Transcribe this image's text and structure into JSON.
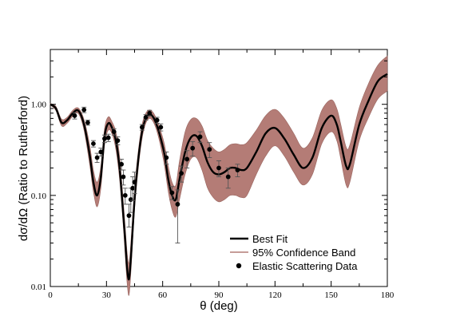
{
  "chart_data": {
    "type": "line",
    "title": "",
    "xlabel": "θ (deg)",
    "ylabel": "dσ/dΩ (Ratio to Rutherford)",
    "xlim": [
      0,
      180
    ],
    "ylim": [
      0.01,
      4.0
    ],
    "y_scale": "log",
    "grid": false,
    "legend_position": "bottom-right",
    "x_ticks": [
      0,
      30,
      60,
      90,
      120,
      150,
      180
    ],
    "x_tick_labels": [
      "0",
      "30",
      "60",
      "90",
      "120",
      "150",
      "180"
    ],
    "y_ticks": [
      0.01,
      0.1,
      1.0
    ],
    "y_tick_labels": [
      "0.01",
      "0.10",
      "1.00"
    ],
    "colors": {
      "best_fit": "#000000",
      "band": "#b47c76",
      "band_edge": "#9a6660",
      "data": "#000000",
      "error_bar": "#555555"
    },
    "series": [
      {
        "name": "Best Fit",
        "kind": "line",
        "x": [
          0,
          3,
          6,
          9,
          12,
          15,
          18,
          21,
          23,
          25,
          27,
          29,
          31,
          33,
          35,
          37,
          39,
          40,
          41,
          42,
          43,
          45,
          47,
          49,
          51,
          53,
          55,
          57,
          59,
          61,
          63,
          65,
          67,
          69,
          72,
          75,
          78,
          81,
          84,
          87,
          90,
          93,
          96,
          99,
          102,
          105,
          110,
          115,
          120,
          125,
          130,
          135,
          140,
          145,
          150,
          153,
          155,
          158,
          160,
          165,
          170,
          175,
          180
        ],
        "y": [
          1.0,
          0.9,
          0.63,
          0.67,
          0.8,
          0.85,
          0.6,
          0.28,
          0.14,
          0.1,
          0.16,
          0.45,
          0.62,
          0.55,
          0.4,
          0.2,
          0.06,
          0.032,
          0.016,
          0.012,
          0.02,
          0.09,
          0.25,
          0.5,
          0.7,
          0.78,
          0.72,
          0.58,
          0.42,
          0.28,
          0.15,
          0.1,
          0.09,
          0.15,
          0.3,
          0.43,
          0.45,
          0.35,
          0.23,
          0.18,
          0.17,
          0.18,
          0.2,
          0.2,
          0.19,
          0.2,
          0.3,
          0.48,
          0.55,
          0.42,
          0.28,
          0.2,
          0.26,
          0.55,
          0.75,
          0.6,
          0.4,
          0.21,
          0.22,
          0.6,
          1.1,
          1.8,
          2.15
        ]
      },
      {
        "name": "95% Confidence Band",
        "kind": "band",
        "x": [
          0,
          3,
          6,
          9,
          12,
          15,
          18,
          21,
          23,
          25,
          27,
          29,
          31,
          33,
          35,
          37,
          39,
          40,
          41,
          42,
          43,
          45,
          47,
          49,
          51,
          53,
          55,
          57,
          59,
          61,
          63,
          65,
          67,
          69,
          72,
          75,
          78,
          81,
          84,
          87,
          90,
          93,
          96,
          99,
          102,
          105,
          110,
          115,
          120,
          125,
          130,
          135,
          140,
          145,
          150,
          153,
          155,
          158,
          160,
          165,
          170,
          175,
          180
        ],
        "lower": [
          0.98,
          0.85,
          0.58,
          0.62,
          0.74,
          0.79,
          0.52,
          0.22,
          0.11,
          0.075,
          0.12,
          0.36,
          0.52,
          0.47,
          0.32,
          0.15,
          0.045,
          0.022,
          0.011,
          0.008,
          0.014,
          0.07,
          0.2,
          0.42,
          0.62,
          0.7,
          0.64,
          0.5,
          0.34,
          0.21,
          0.11,
          0.07,
          0.058,
          0.09,
          0.17,
          0.25,
          0.26,
          0.19,
          0.12,
          0.095,
          0.085,
          0.09,
          0.1,
          0.1,
          0.095,
          0.1,
          0.17,
          0.27,
          0.35,
          0.27,
          0.18,
          0.13,
          0.17,
          0.37,
          0.5,
          0.4,
          0.26,
          0.13,
          0.14,
          0.4,
          0.72,
          1.15,
          1.4
        ],
        "upper": [
          1.02,
          0.95,
          0.69,
          0.72,
          0.86,
          0.91,
          0.68,
          0.36,
          0.19,
          0.14,
          0.21,
          0.55,
          0.73,
          0.64,
          0.5,
          0.27,
          0.085,
          0.045,
          0.024,
          0.018,
          0.03,
          0.12,
          0.31,
          0.6,
          0.8,
          0.87,
          0.81,
          0.67,
          0.51,
          0.36,
          0.21,
          0.14,
          0.13,
          0.24,
          0.5,
          0.68,
          0.7,
          0.58,
          0.4,
          0.33,
          0.3,
          0.32,
          0.36,
          0.37,
          0.36,
          0.38,
          0.52,
          0.75,
          0.88,
          0.7,
          0.48,
          0.33,
          0.43,
          0.86,
          1.12,
          0.9,
          0.62,
          0.34,
          0.36,
          0.92,
          1.7,
          2.7,
          3.4
        ]
      },
      {
        "name": "Elastic Scattering Data",
        "kind": "points",
        "x": [
          13,
          18,
          20,
          23,
          25,
          27,
          29,
          31,
          34,
          36,
          38,
          39,
          40,
          42,
          43,
          44,
          45,
          49,
          51,
          53,
          57,
          59,
          62,
          65,
          68,
          70,
          73,
          76,
          80,
          85,
          90,
          95,
          100
        ],
        "y": [
          0.75,
          0.87,
          0.63,
          0.37,
          0.26,
          0.3,
          0.42,
          0.43,
          0.5,
          0.4,
          0.22,
          0.16,
          0.1,
          0.06,
          0.09,
          0.12,
          0.14,
          0.56,
          0.72,
          0.8,
          0.67,
          0.56,
          0.26,
          0.107,
          0.08,
          0.175,
          0.25,
          0.33,
          0.44,
          0.32,
          0.2,
          0.16,
          0.19
        ],
        "err_low": [
          0.69,
          0.81,
          0.59,
          0.34,
          0.23,
          0.27,
          0.38,
          0.39,
          0.46,
          0.36,
          0.19,
          0.13,
          0.08,
          0.045,
          0.065,
          0.088,
          0.105,
          0.52,
          0.67,
          0.74,
          0.62,
          0.51,
          0.22,
          0.09,
          0.03,
          0.14,
          0.2,
          0.27,
          0.38,
          0.26,
          0.16,
          0.12,
          0.16
        ],
        "err_high": [
          0.81,
          0.93,
          0.67,
          0.4,
          0.29,
          0.33,
          0.46,
          0.47,
          0.54,
          0.44,
          0.25,
          0.19,
          0.12,
          0.08,
          0.12,
          0.16,
          0.18,
          0.6,
          0.77,
          0.86,
          0.72,
          0.61,
          0.3,
          0.125,
          0.115,
          0.21,
          0.31,
          0.39,
          0.5,
          0.38,
          0.24,
          0.2,
          0.22
        ]
      }
    ],
    "legend": [
      {
        "label": "Best Fit",
        "icon": "thick-line"
      },
      {
        "label": "95% Confidence Band",
        "icon": "band-line"
      },
      {
        "label": "Elastic Scattering Data",
        "icon": "dot"
      }
    ]
  }
}
